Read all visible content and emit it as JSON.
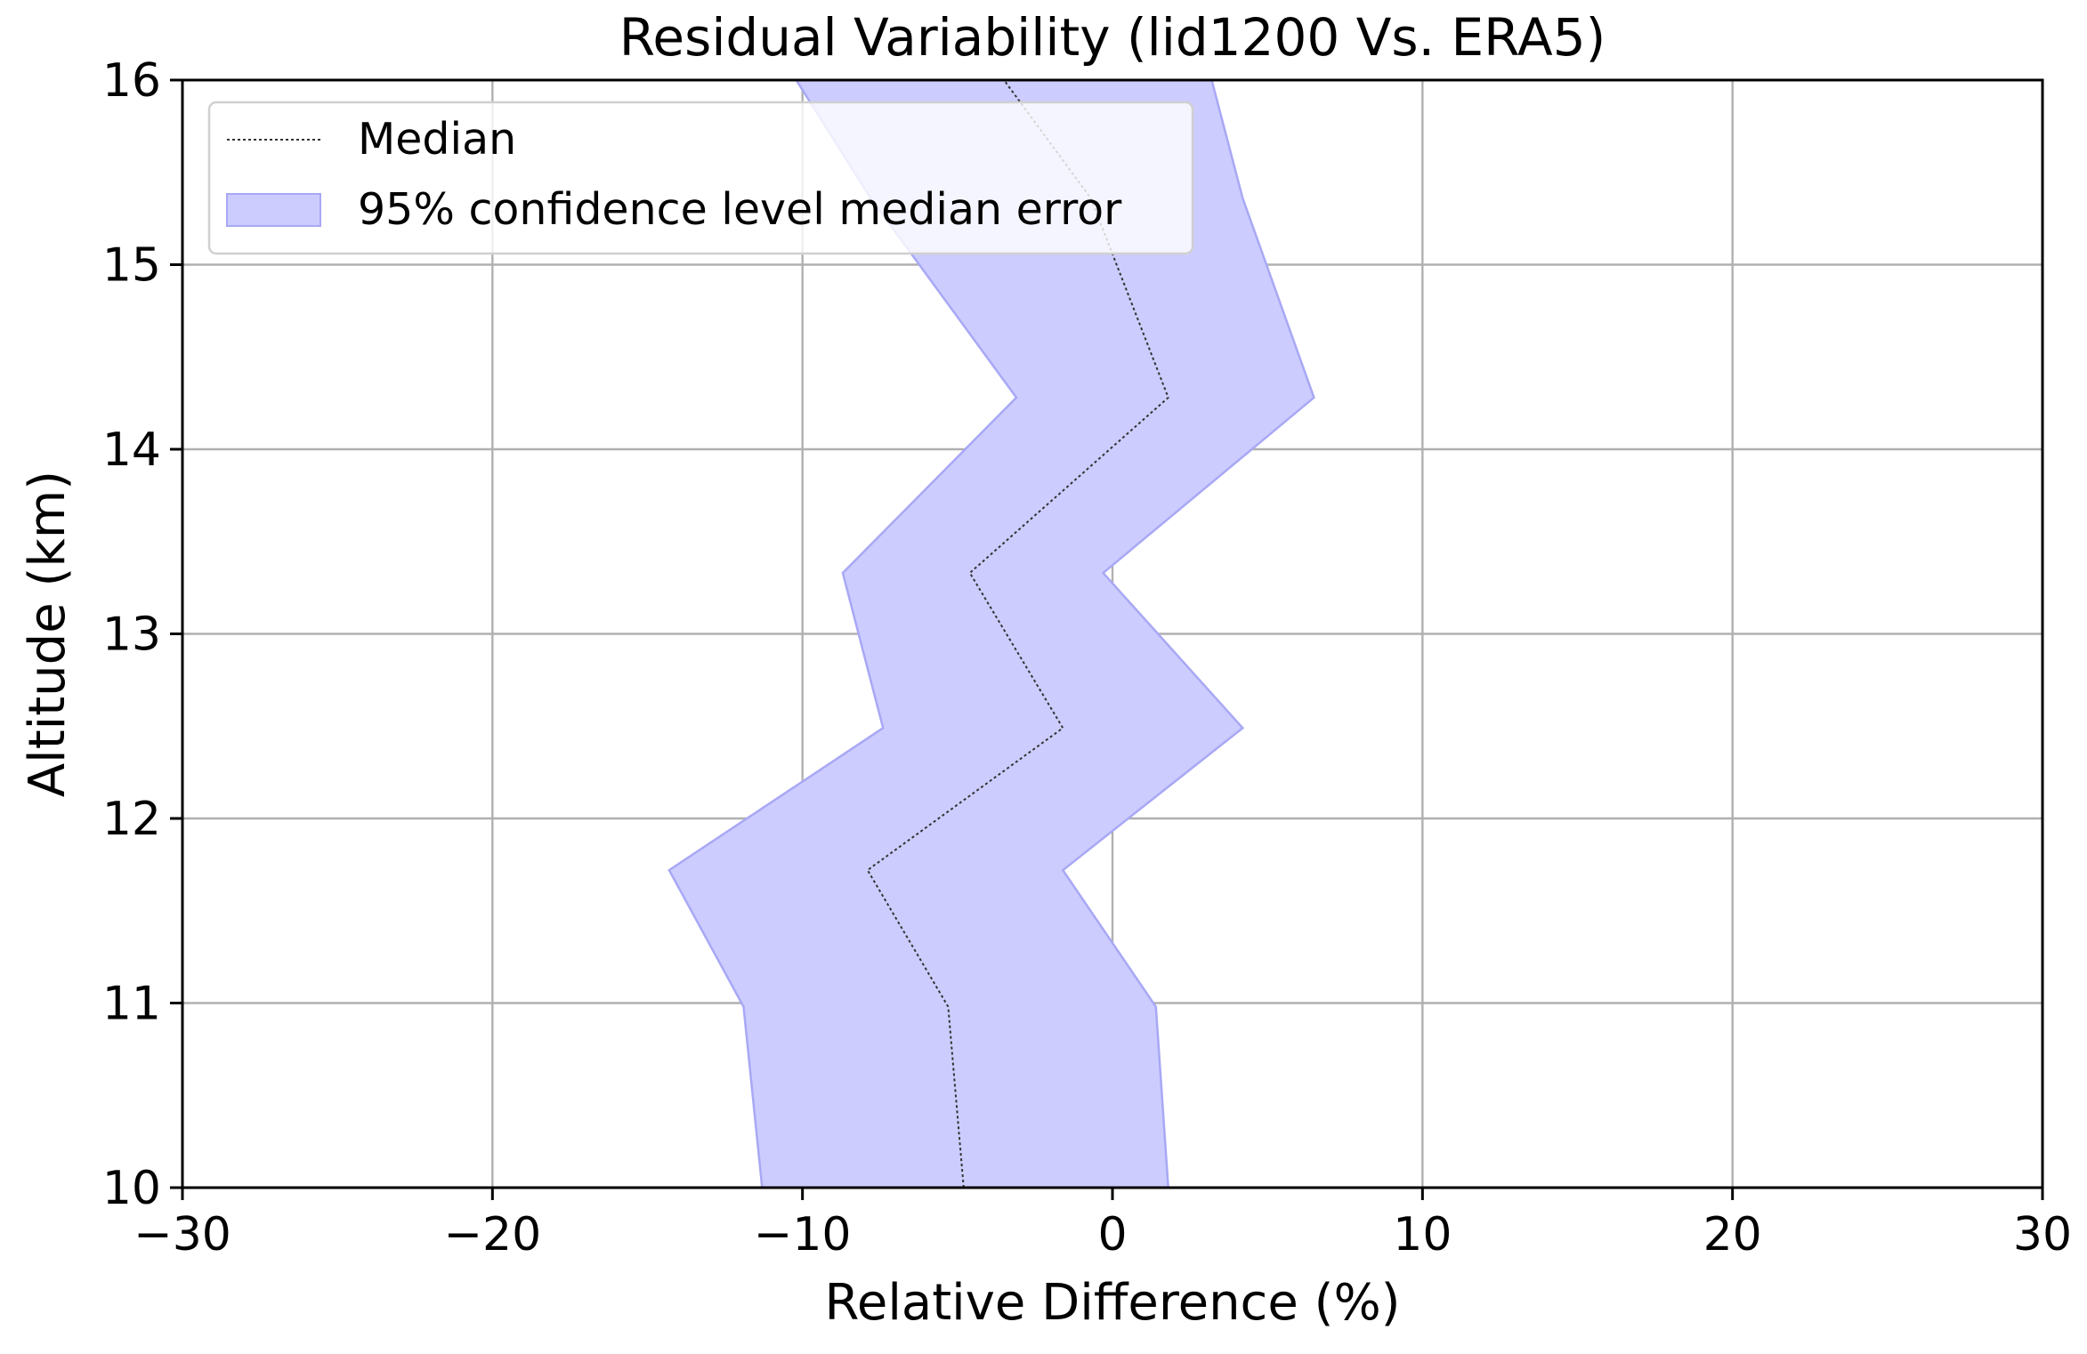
{
  "chart_data": {
    "type": "line",
    "title": "Residual Variability (lid1200  Vs. ERA5)",
    "xlabel": "Relative Difference (%)",
    "ylabel": "Altitude (km)",
    "xlim": [
      -30,
      30
    ],
    "ylim": [
      10,
      16
    ],
    "xticks": [
      -30,
      -20,
      -10,
      0,
      10,
      20,
      30
    ],
    "xtick_labels": [
      "−30",
      "−20",
      "−10",
      "0",
      "10",
      "20",
      "30"
    ],
    "yticks": [
      10,
      11,
      12,
      13,
      14,
      15,
      16
    ],
    "ytick_labels": [
      "10",
      "11",
      "12",
      "13",
      "14",
      "15",
      "16"
    ],
    "grid": true,
    "legend_position": "upper-left",
    "altitude": [
      10.0,
      10.98,
      11.72,
      12.49,
      13.33,
      14.28,
      15.36,
      16.0
    ],
    "series": [
      {
        "name": "Median",
        "style": "dotted",
        "color": "#333333",
        "x": [
          -4.8,
          -5.3,
          -7.9,
          -1.6,
          -4.6,
          1.8,
          -0.7,
          -3.5
        ]
      },
      {
        "name": "95% confidence level median error",
        "style": "band",
        "color": "#ccccff",
        "edge_color": "#a8a8f5",
        "lower": [
          -11.3,
          -11.9,
          -14.3,
          -7.4,
          -8.7,
          -3.1,
          -7.8,
          -10.2
        ],
        "upper": [
          1.8,
          1.4,
          -1.6,
          4.2,
          -0.3,
          6.5,
          4.2,
          3.2
        ]
      }
    ]
  }
}
